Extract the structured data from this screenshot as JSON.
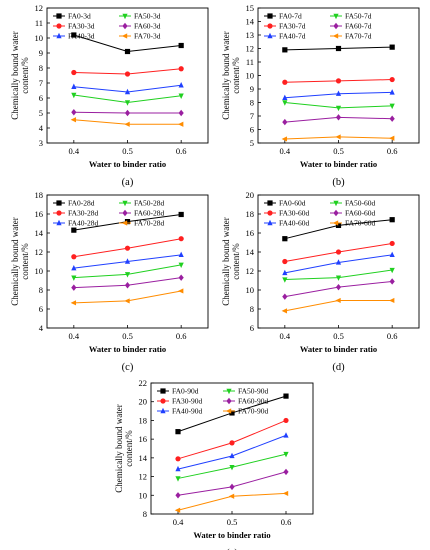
{
  "figure": {
    "background": "#ffffff",
    "frame_color": "#000000"
  },
  "chart_data": [
    {
      "type": "line",
      "panel": "a",
      "caption": "(a)",
      "xlabel": "Water to binder ratio",
      "ylabel": "Chemically bound water content/%",
      "x": [
        0.4,
        0.5,
        0.6
      ],
      "x_ticks": [
        "0.4",
        "0.5",
        "0.6"
      ],
      "xlim": [
        0.35,
        0.65
      ],
      "ylim": [
        3,
        12
      ],
      "y_ticks": [
        3,
        4,
        5,
        6,
        7,
        8,
        9,
        10,
        11,
        12
      ],
      "legend_position": "top-left",
      "grid": false,
      "series": [
        {
          "name": "FA0-3d",
          "values": [
            10.2,
            9.1,
            9.5
          ],
          "color": "#000000",
          "marker": "square"
        },
        {
          "name": "FA30-3d",
          "values": [
            7.7,
            7.6,
            7.95
          ],
          "color": "#ff2020",
          "marker": "circle"
        },
        {
          "name": "FA40-3d",
          "values": [
            6.75,
            6.4,
            6.85
          ],
          "color": "#2040ff",
          "marker": "triangle-up"
        },
        {
          "name": "FA50-3d",
          "values": [
            6.2,
            5.7,
            6.15
          ],
          "color": "#20d020",
          "marker": "triangle-down"
        },
        {
          "name": "FA60-3d",
          "values": [
            5.05,
            5.0,
            5.0
          ],
          "color": "#9a1fa0",
          "marker": "diamond"
        },
        {
          "name": "FA70-3d",
          "values": [
            4.55,
            4.25,
            4.25
          ],
          "color": "#ff8c00",
          "marker": "triangle-left"
        }
      ]
    },
    {
      "type": "line",
      "panel": "b",
      "caption": "(b)",
      "xlabel": "Water to binder ratio",
      "ylabel": "Chemically bound water content/%",
      "x": [
        0.4,
        0.5,
        0.6
      ],
      "x_ticks": [
        "0.4",
        "0.5",
        "0.6"
      ],
      "xlim": [
        0.35,
        0.65
      ],
      "ylim": [
        5,
        15
      ],
      "y_ticks": [
        5,
        6,
        7,
        8,
        9,
        10,
        11,
        12,
        13,
        14,
        15
      ],
      "legend_position": "top-left",
      "grid": false,
      "series": [
        {
          "name": "FA0-7d",
          "values": [
            11.9,
            12.0,
            12.1
          ],
          "color": "#000000",
          "marker": "square"
        },
        {
          "name": "FA30-7d",
          "values": [
            9.5,
            9.6,
            9.7
          ],
          "color": "#ff2020",
          "marker": "circle"
        },
        {
          "name": "FA40-7d",
          "values": [
            8.35,
            8.65,
            8.75
          ],
          "color": "#2040ff",
          "marker": "triangle-up"
        },
        {
          "name": "FA50-7d",
          "values": [
            8.0,
            7.6,
            7.75
          ],
          "color": "#20d020",
          "marker": "triangle-down"
        },
        {
          "name": "FA60-7d",
          "values": [
            6.55,
            6.9,
            6.8
          ],
          "color": "#9a1fa0",
          "marker": "diamond"
        },
        {
          "name": "FA70-7d",
          "values": [
            5.3,
            5.45,
            5.35
          ],
          "color": "#ff8c00",
          "marker": "triangle-left"
        }
      ]
    },
    {
      "type": "line",
      "panel": "c",
      "caption": "(c)",
      "xlabel": "Water to binder ratio",
      "ylabel": "Chemically bound water content/%",
      "x": [
        0.4,
        0.5,
        0.6
      ],
      "x_ticks": [
        "0.4",
        "0.5",
        "0.6"
      ],
      "xlim": [
        0.35,
        0.65
      ],
      "ylim": [
        4,
        18
      ],
      "y_ticks": [
        4,
        6,
        8,
        10,
        12,
        14,
        16,
        18
      ],
      "legend_position": "top-left",
      "grid": false,
      "series": [
        {
          "name": "FA0-28d",
          "values": [
            14.3,
            15.2,
            15.95
          ],
          "color": "#000000",
          "marker": "square"
        },
        {
          "name": "FA30-28d",
          "values": [
            11.5,
            12.4,
            13.4
          ],
          "color": "#ff2020",
          "marker": "circle"
        },
        {
          "name": "FA40-28d",
          "values": [
            10.3,
            11.0,
            11.7
          ],
          "color": "#2040ff",
          "marker": "triangle-up"
        },
        {
          "name": "FA50-28d",
          "values": [
            9.3,
            9.65,
            10.65
          ],
          "color": "#20d020",
          "marker": "triangle-down"
        },
        {
          "name": "FA60-28d",
          "values": [
            8.25,
            8.5,
            9.3
          ],
          "color": "#9a1fa0",
          "marker": "diamond"
        },
        {
          "name": "FA70-28d",
          "values": [
            6.65,
            6.85,
            7.9
          ],
          "color": "#ff8c00",
          "marker": "triangle-left"
        }
      ]
    },
    {
      "type": "line",
      "panel": "d",
      "caption": "(d)",
      "xlabel": "Water to binder ratio",
      "ylabel": "Chemically bound water content/%",
      "x": [
        0.4,
        0.5,
        0.6
      ],
      "x_ticks": [
        "0.4",
        "0.5",
        "0.6"
      ],
      "xlim": [
        0.35,
        0.65
      ],
      "ylim": [
        6,
        20
      ],
      "y_ticks": [
        6,
        8,
        10,
        12,
        14,
        16,
        18,
        20
      ],
      "legend_position": "top-left",
      "grid": false,
      "series": [
        {
          "name": "FA0-60d",
          "values": [
            15.4,
            16.8,
            17.4
          ],
          "color": "#000000",
          "marker": "square"
        },
        {
          "name": "FA30-60d",
          "values": [
            13.0,
            14.0,
            14.9
          ],
          "color": "#ff2020",
          "marker": "circle"
        },
        {
          "name": "FA40-60d",
          "values": [
            11.8,
            12.9,
            13.7
          ],
          "color": "#2040ff",
          "marker": "triangle-up"
        },
        {
          "name": "FA50-60d",
          "values": [
            11.1,
            11.3,
            12.1
          ],
          "color": "#20d020",
          "marker": "triangle-down"
        },
        {
          "name": "FA60-60d",
          "values": [
            9.3,
            10.3,
            10.9
          ],
          "color": "#9a1fa0",
          "marker": "diamond"
        },
        {
          "name": "FA70-60d",
          "values": [
            7.8,
            8.9,
            8.9
          ],
          "color": "#ff8c00",
          "marker": "triangle-left"
        }
      ]
    },
    {
      "type": "line",
      "panel": "e",
      "caption": "(e)",
      "xlabel": "Water to binder ratio",
      "ylabel": "Chemically bound water content/%",
      "x": [
        0.4,
        0.5,
        0.6
      ],
      "x_ticks": [
        "0.4",
        "0.5",
        "0.6"
      ],
      "xlim": [
        0.35,
        0.65
      ],
      "ylim": [
        8,
        22
      ],
      "y_ticks": [
        8,
        10,
        12,
        14,
        16,
        18,
        20,
        22
      ],
      "legend_position": "top-left",
      "grid": false,
      "series": [
        {
          "name": "FA0-90d",
          "values": [
            16.8,
            18.8,
            20.6
          ],
          "color": "#000000",
          "marker": "square"
        },
        {
          "name": "FA30-90d",
          "values": [
            13.9,
            15.6,
            18.0
          ],
          "color": "#ff2020",
          "marker": "circle"
        },
        {
          "name": "FA40-90d",
          "values": [
            12.8,
            14.2,
            16.4
          ],
          "color": "#2040ff",
          "marker": "triangle-up"
        },
        {
          "name": "FA50-90d",
          "values": [
            11.8,
            13.0,
            14.4
          ],
          "color": "#20d020",
          "marker": "triangle-down"
        },
        {
          "name": "FA60-90d",
          "values": [
            10.0,
            10.9,
            12.5
          ],
          "color": "#9a1fa0",
          "marker": "diamond"
        },
        {
          "name": "FA70-90d",
          "values": [
            8.4,
            9.9,
            10.2
          ],
          "color": "#ff8c00",
          "marker": "triangle-left"
        }
      ]
    }
  ]
}
